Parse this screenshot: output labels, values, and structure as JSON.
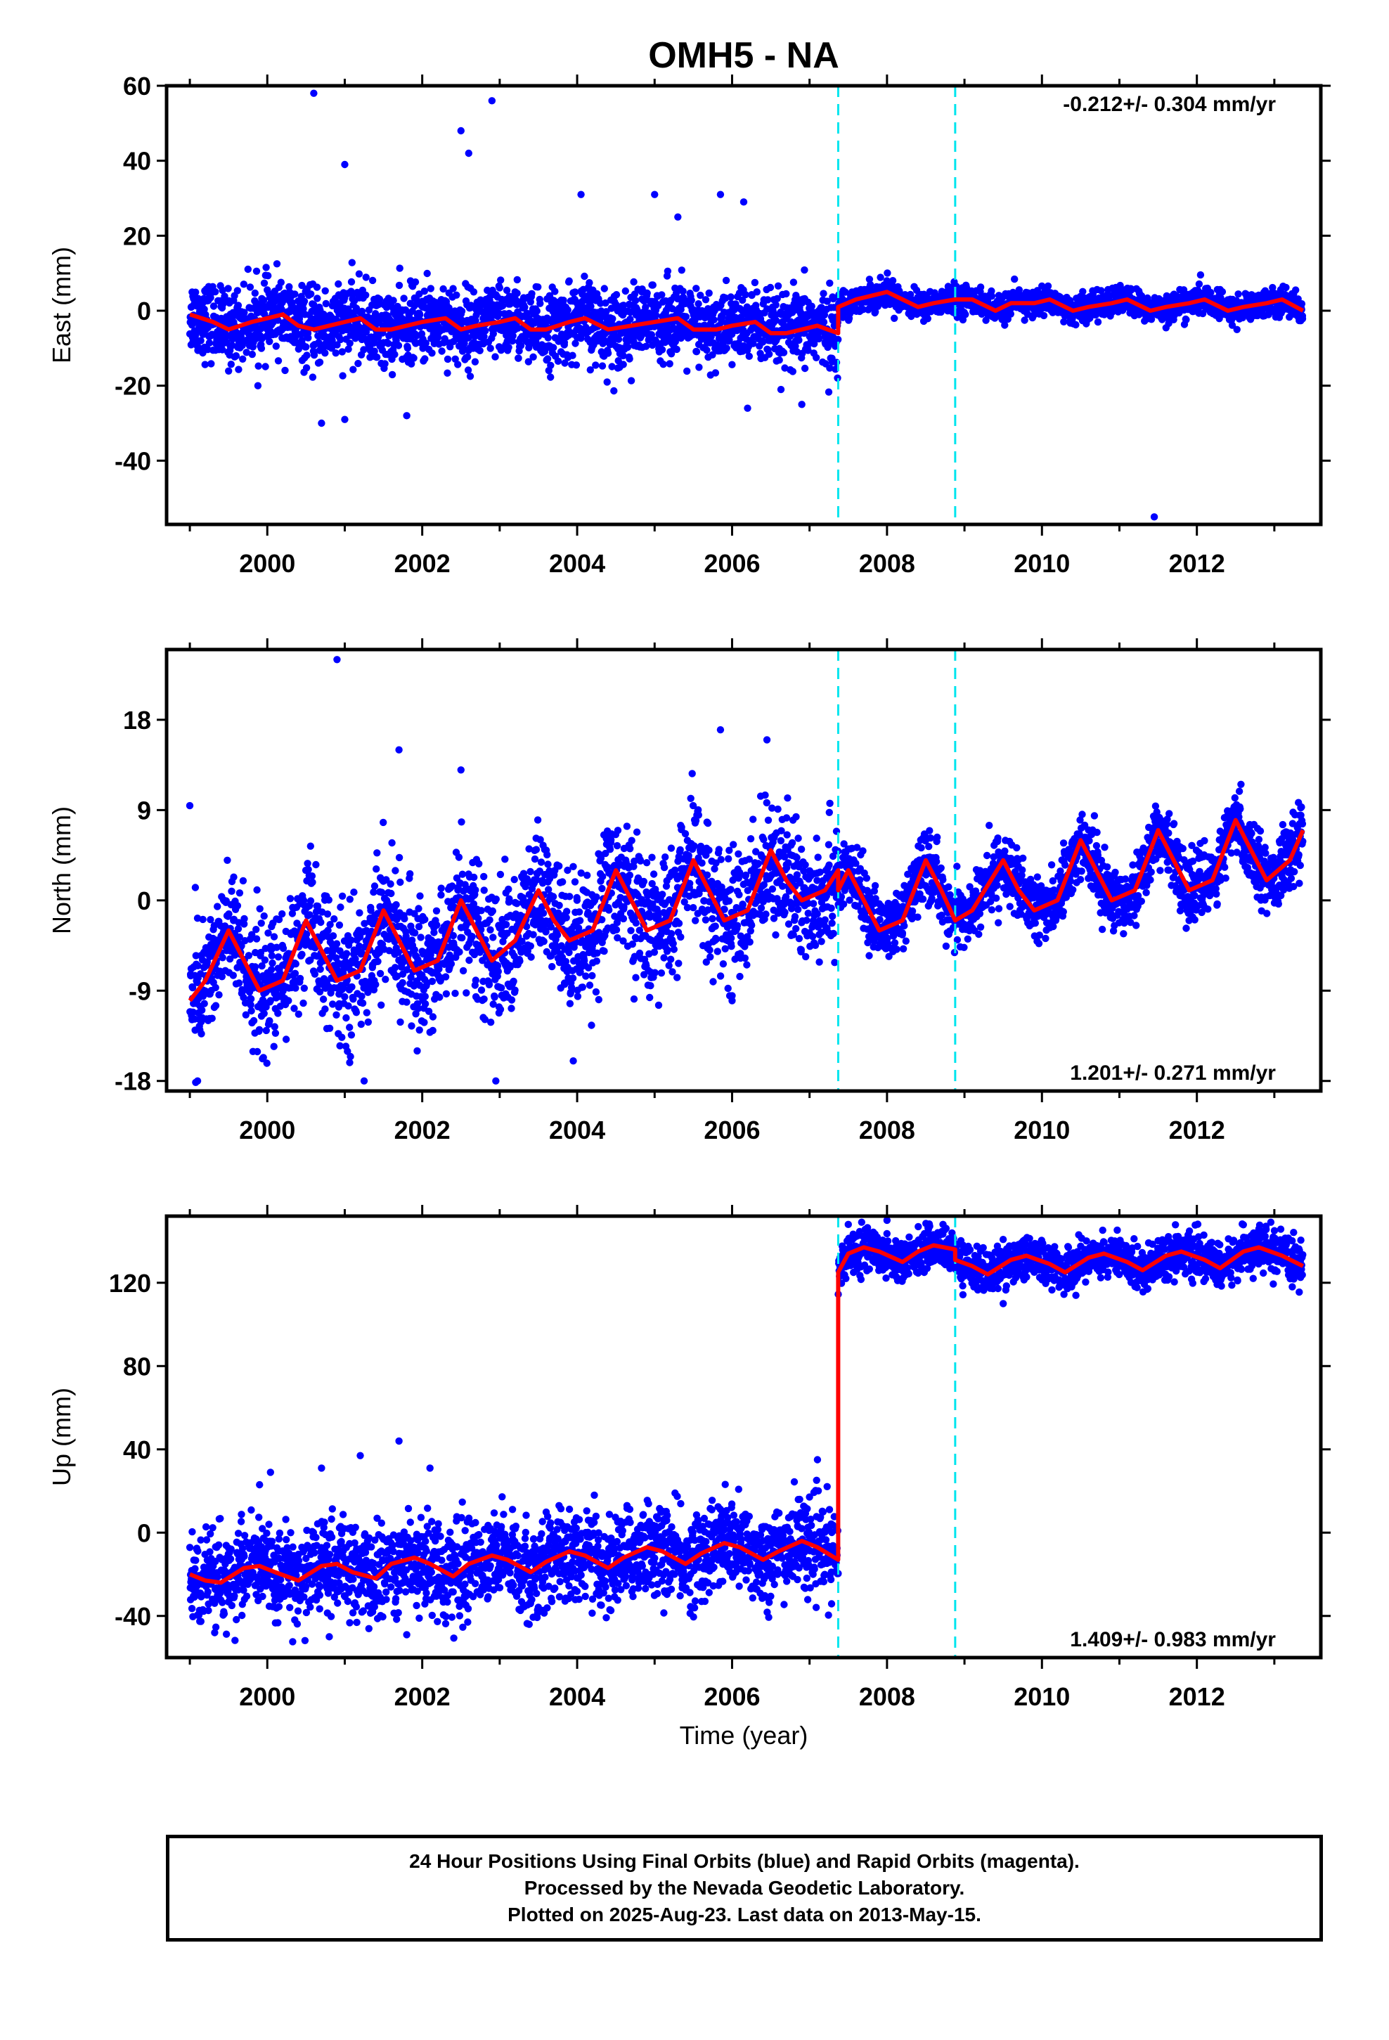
{
  "title": "OMH5 - NA",
  "xlabel": "Time (year)",
  "x_ticks": [
    "2000",
    "2002",
    "2004",
    "2006",
    "2008",
    "2010",
    "2012"
  ],
  "colors": {
    "points": "#0000ff",
    "model": "#ff0000",
    "breaks": "#00e5ee"
  },
  "breaks": [
    2007.37,
    2008.88
  ],
  "chart_data": [
    {
      "type": "scatter",
      "ylabel": "East (mm)",
      "rate": "-0.212+/- 0.304 mm/yr",
      "xlim": [
        1998.7,
        2013.6
      ],
      "ylim": [
        -57,
        60
      ],
      "y_ticks": [
        "60",
        "40",
        "20",
        "0",
        "-20",
        "-40"
      ],
      "y_tick_values": [
        60,
        40,
        20,
        0,
        -20,
        -40
      ],
      "model_points": [
        [
          1999.0,
          -1
        ],
        [
          1999.3,
          -3
        ],
        [
          1999.5,
          -5
        ],
        [
          1999.8,
          -3
        ],
        [
          2000.0,
          -2
        ],
        [
          2000.2,
          -1
        ],
        [
          2000.4,
          -4
        ],
        [
          2000.6,
          -5
        ],
        [
          2000.8,
          -4
        ],
        [
          2001.0,
          -3
        ],
        [
          2001.2,
          -2
        ],
        [
          2001.4,
          -5
        ],
        [
          2001.6,
          -5
        ],
        [
          2001.8,
          -4
        ],
        [
          2002.0,
          -3
        ],
        [
          2002.3,
          -2
        ],
        [
          2002.5,
          -5
        ],
        [
          2002.7,
          -4
        ],
        [
          2003.0,
          -3
        ],
        [
          2003.2,
          -2
        ],
        [
          2003.4,
          -5
        ],
        [
          2003.6,
          -5
        ],
        [
          2003.9,
          -3
        ],
        [
          2004.1,
          -2
        ],
        [
          2004.4,
          -5
        ],
        [
          2004.7,
          -4
        ],
        [
          2005.0,
          -3
        ],
        [
          2005.3,
          -2
        ],
        [
          2005.5,
          -5
        ],
        [
          2005.8,
          -5
        ],
        [
          2006.0,
          -4
        ],
        [
          2006.3,
          -3
        ],
        [
          2006.5,
          -6
        ],
        [
          2006.7,
          -6
        ],
        [
          2006.9,
          -5
        ],
        [
          2007.1,
          -4
        ],
        [
          2007.37,
          -6
        ],
        [
          2007.37,
          1
        ],
        [
          2007.6,
          3
        ],
        [
          2007.8,
          4
        ],
        [
          2008.0,
          5
        ],
        [
          2008.2,
          3
        ],
        [
          2008.4,
          1
        ],
        [
          2008.6,
          2
        ],
        [
          2008.88,
          3
        ],
        [
          2009.1,
          3
        ],
        [
          2009.4,
          0
        ],
        [
          2009.6,
          2
        ],
        [
          2009.9,
          2
        ],
        [
          2010.1,
          3
        ],
        [
          2010.4,
          0
        ],
        [
          2010.6,
          1
        ],
        [
          2010.9,
          2
        ],
        [
          2011.1,
          3
        ],
        [
          2011.4,
          0
        ],
        [
          2011.6,
          1
        ],
        [
          2011.9,
          2
        ],
        [
          2012.1,
          3
        ],
        [
          2012.4,
          0
        ],
        [
          2012.6,
          1
        ],
        [
          2012.9,
          2
        ],
        [
          2013.1,
          3
        ],
        [
          2013.37,
          0
        ]
      ],
      "outliers": [
        [
          2000.6,
          58
        ],
        [
          2001.0,
          39
        ],
        [
          2002.5,
          48
        ],
        [
          2002.6,
          42
        ],
        [
          2002.9,
          56
        ],
        [
          2004.05,
          31
        ],
        [
          2005.0,
          31
        ],
        [
          2005.3,
          25
        ],
        [
          2005.85,
          31
        ],
        [
          2006.15,
          29
        ],
        [
          2000.7,
          -30
        ],
        [
          2001.0,
          -29
        ],
        [
          2001.8,
          -28
        ],
        [
          2006.2,
          -26
        ],
        [
          2006.9,
          -25
        ],
        [
          2011.45,
          -55
        ]
      ],
      "scatter_model": {
        "start": 1999.0,
        "end": 2013.37,
        "break": 2007.37,
        "n": 3800,
        "spread_before": 5,
        "spread_after": 1.8
      }
    },
    {
      "type": "scatter",
      "ylabel": "North (mm)",
      "rate": "1.201+/- 0.271 mm/yr",
      "xlim": [
        1998.7,
        2013.6
      ],
      "ylim": [
        -19,
        25
      ],
      "y_ticks": [
        "18",
        "9",
        "0",
        "-9",
        "-18"
      ],
      "y_tick_values": [
        18,
        9,
        0,
        -9,
        -18
      ],
      "model_points": [
        [
          1999.0,
          -10
        ],
        [
          1999.2,
          -8
        ],
        [
          1999.5,
          -3
        ],
        [
          1999.7,
          -6
        ],
        [
          1999.9,
          -9
        ],
        [
          2000.2,
          -8
        ],
        [
          2000.5,
          -2
        ],
        [
          2000.7,
          -5
        ],
        [
          2000.9,
          -8
        ],
        [
          2001.2,
          -7
        ],
        [
          2001.5,
          -1
        ],
        [
          2001.7,
          -4
        ],
        [
          2001.9,
          -7
        ],
        [
          2002.2,
          -6
        ],
        [
          2002.5,
          0
        ],
        [
          2002.7,
          -3
        ],
        [
          2002.9,
          -6
        ],
        [
          2003.2,
          -4
        ],
        [
          2003.5,
          1
        ],
        [
          2003.7,
          -2
        ],
        [
          2003.9,
          -4
        ],
        [
          2004.2,
          -3
        ],
        [
          2004.5,
          3
        ],
        [
          2004.7,
          0
        ],
        [
          2004.9,
          -3
        ],
        [
          2005.2,
          -2
        ],
        [
          2005.5,
          4
        ],
        [
          2005.7,
          1
        ],
        [
          2005.9,
          -2
        ],
        [
          2006.2,
          -1
        ],
        [
          2006.5,
          5
        ],
        [
          2006.7,
          2
        ],
        [
          2006.9,
          0
        ],
        [
          2007.2,
          1
        ],
        [
          2007.37,
          3
        ],
        [
          2007.37,
          1
        ],
        [
          2007.5,
          3
        ],
        [
          2007.7,
          0
        ],
        [
          2007.9,
          -3
        ],
        [
          2008.2,
          -2
        ],
        [
          2008.5,
          4
        ],
        [
          2008.7,
          1
        ],
        [
          2008.88,
          -2
        ],
        [
          2009.1,
          -1
        ],
        [
          2009.5,
          4
        ],
        [
          2009.7,
          1
        ],
        [
          2009.9,
          -1
        ],
        [
          2010.2,
          0
        ],
        [
          2010.5,
          6
        ],
        [
          2010.7,
          3
        ],
        [
          2010.9,
          0
        ],
        [
          2011.2,
          1
        ],
        [
          2011.5,
          7
        ],
        [
          2011.7,
          4
        ],
        [
          2011.9,
          1
        ],
        [
          2012.2,
          2
        ],
        [
          2012.5,
          8
        ],
        [
          2012.7,
          5
        ],
        [
          2012.9,
          2
        ],
        [
          2013.2,
          4
        ],
        [
          2013.37,
          7
        ]
      ],
      "outliers": [
        [
          2000.9,
          24
        ],
        [
          2001.7,
          15
        ],
        [
          2002.5,
          13
        ],
        [
          2005.85,
          17
        ],
        [
          2006.45,
          16
        ],
        [
          2006.0,
          -10
        ],
        [
          1999.1,
          -18
        ],
        [
          2001.25,
          -18
        ],
        [
          2002.95,
          -18
        ],
        [
          2003.95,
          -16
        ]
      ],
      "scatter_model": {
        "start": 1999.0,
        "end": 2013.37,
        "break": 2007.37,
        "n": 3800,
        "spread_before": 3.2,
        "spread_after": 1.6
      }
    },
    {
      "type": "scatter",
      "ylabel": "Up (mm)",
      "rate": "1.409+/- 0.983 mm/yr",
      "xlim": [
        1998.7,
        2013.6
      ],
      "ylim": [
        -60,
        152
      ],
      "y_ticks": [
        "120",
        "80",
        "40",
        "0",
        "-40"
      ],
      "y_tick_values": [
        120,
        80,
        40,
        0,
        -40
      ],
      "model_points": [
        [
          1999.0,
          -20
        ],
        [
          1999.2,
          -23
        ],
        [
          1999.4,
          -24
        ],
        [
          1999.7,
          -17
        ],
        [
          1999.9,
          -16
        ],
        [
          2000.1,
          -19
        ],
        [
          2000.4,
          -23
        ],
        [
          2000.7,
          -16
        ],
        [
          2000.9,
          -15
        ],
        [
          2001.1,
          -19
        ],
        [
          2001.4,
          -22
        ],
        [
          2001.6,
          -15
        ],
        [
          2001.9,
          -12
        ],
        [
          2002.1,
          -15
        ],
        [
          2002.4,
          -21
        ],
        [
          2002.6,
          -15
        ],
        [
          2002.9,
          -11
        ],
        [
          2003.1,
          -13
        ],
        [
          2003.4,
          -19
        ],
        [
          2003.6,
          -14
        ],
        [
          2003.9,
          -9
        ],
        [
          2004.1,
          -11
        ],
        [
          2004.4,
          -17
        ],
        [
          2004.6,
          -12
        ],
        [
          2004.9,
          -7
        ],
        [
          2005.1,
          -9
        ],
        [
          2005.4,
          -15
        ],
        [
          2005.6,
          -10
        ],
        [
          2005.9,
          -5
        ],
        [
          2006.1,
          -7
        ],
        [
          2006.4,
          -13
        ],
        [
          2006.6,
          -9
        ],
        [
          2006.9,
          -4
        ],
        [
          2007.1,
          -7
        ],
        [
          2007.37,
          -13
        ],
        [
          2007.37,
          125
        ],
        [
          2007.5,
          134
        ],
        [
          2007.7,
          137
        ],
        [
          2007.9,
          135
        ],
        [
          2008.2,
          130
        ],
        [
          2008.4,
          135
        ],
        [
          2008.6,
          138
        ],
        [
          2008.88,
          136
        ],
        [
          2008.88,
          131
        ],
        [
          2009.1,
          128
        ],
        [
          2009.3,
          124
        ],
        [
          2009.6,
          131
        ],
        [
          2009.8,
          133
        ],
        [
          2010.1,
          129
        ],
        [
          2010.3,
          125
        ],
        [
          2010.6,
          132
        ],
        [
          2010.8,
          134
        ],
        [
          2011.1,
          130
        ],
        [
          2011.3,
          126
        ],
        [
          2011.6,
          133
        ],
        [
          2011.8,
          135
        ],
        [
          2012.1,
          131
        ],
        [
          2012.3,
          127
        ],
        [
          2012.6,
          135
        ],
        [
          2012.8,
          137
        ],
        [
          2013.1,
          133
        ],
        [
          2013.37,
          128
        ]
      ],
      "outliers": [
        [
          2001.7,
          44
        ],
        [
          2002.1,
          31
        ],
        [
          2001.2,
          37
        ],
        [
          2000.7,
          31
        ],
        [
          1999.9,
          23
        ],
        [
          2000.8,
          -50
        ],
        [
          2001.8,
          -49
        ],
        [
          2007.5,
          148
        ],
        [
          2008.0,
          150
        ],
        [
          2009.5,
          110
        ]
      ],
      "scatter_model": {
        "start": 1999.0,
        "end": 2013.37,
        "break": 2007.37,
        "n": 3800,
        "spread_before": 11,
        "spread_after": 5
      }
    }
  ],
  "footer": {
    "line1": "24 Hour Positions Using Final Orbits (blue) and Rapid Orbits (magenta).",
    "line2": "Processed by the Nevada Geodetic Laboratory.",
    "line3": "Plotted on 2025-Aug-23. Last data on 2013-May-15."
  }
}
